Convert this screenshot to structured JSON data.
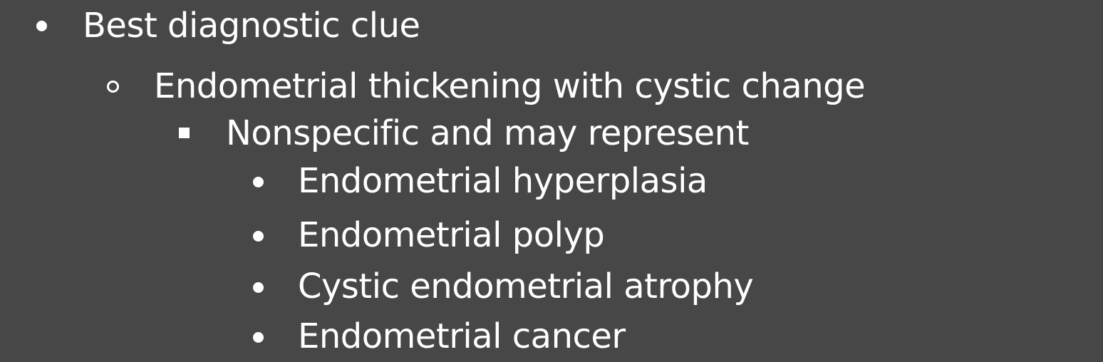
{
  "colors": {
    "background": "#474747",
    "text": "#ffffff"
  },
  "outline": {
    "level1": {
      "bullet_icon": "filled-circle",
      "text": "Best diagnostic clue"
    },
    "level2": {
      "bullet_icon": "hollow-circle",
      "text": "Endometrial thickening with cystic change"
    },
    "level3": {
      "bullet_icon": "filled-square",
      "text": "Nonspecific and may represent"
    },
    "level4": {
      "bullet_icon": "filled-circle",
      "items": [
        "Endometrial hyperplasia",
        "Endometrial polyp",
        "Cystic endometrial atrophy",
        "Endometrial cancer"
      ]
    }
  }
}
